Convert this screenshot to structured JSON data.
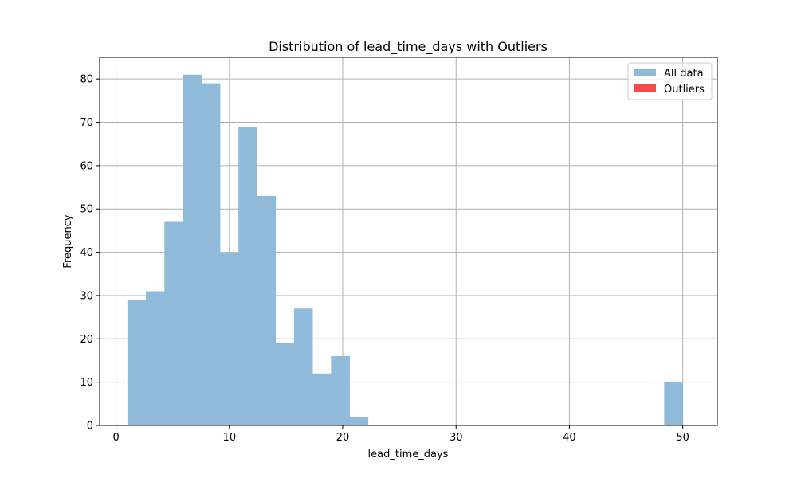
{
  "chart_data": {
    "type": "bar",
    "title": "Distribution of lead_time_days with Outliers",
    "xlabel": "lead_time_days",
    "ylabel": "Frequency",
    "xlim": [
      -1.45,
      53.05
    ],
    "ylim": [
      0,
      85
    ],
    "xticks": [
      0,
      10,
      20,
      30,
      40,
      50
    ],
    "yticks": [
      0,
      10,
      20,
      30,
      40,
      50,
      60,
      70,
      80
    ],
    "grid": true,
    "legend_position": "top-right",
    "bin_edges": [
      1.0,
      2.633,
      4.267,
      5.9,
      7.533,
      9.167,
      10.8,
      12.433,
      14.067,
      15.7,
      17.333,
      18.967,
      20.6,
      22.233,
      23.867,
      25.5,
      27.133,
      28.767,
      30.4,
      32.033,
      33.667,
      35.3,
      36.933,
      38.567,
      40.2,
      41.833,
      43.467,
      45.1,
      46.733,
      48.367,
      50.0
    ],
    "series": [
      {
        "name": "All data",
        "color": "#8fbad9",
        "values": [
          29,
          31,
          47,
          81,
          79,
          40,
          69,
          53,
          19,
          27,
          12,
          16,
          2,
          0,
          0,
          0,
          0,
          0,
          0,
          0,
          0,
          0,
          0,
          0,
          0,
          0,
          0,
          0,
          0,
          10
        ]
      },
      {
        "name": "Outliers",
        "color": "#f54a4a",
        "values": []
      }
    ]
  }
}
